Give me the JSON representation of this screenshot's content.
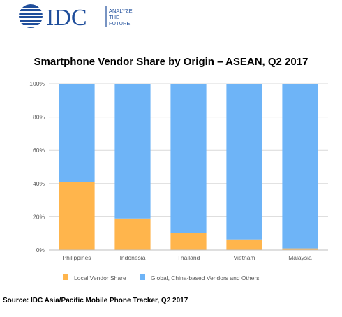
{
  "brand": {
    "logo_text": "IDC",
    "tagline_lines": [
      "ANALYZE",
      "THE",
      "FUTURE"
    ],
    "color": "#1f4e9b"
  },
  "chart_data": {
    "type": "bar",
    "stacked": true,
    "title": "Smartphone Vendor Share by Origin – ASEAN, Q2 2017",
    "categories": [
      "Philippines",
      "Indonesia",
      "Thailand",
      "Vietnam",
      "Malaysia"
    ],
    "series": [
      {
        "name": "Local Vendor Share",
        "color": "#ffb54c",
        "values": [
          41,
          19,
          10.5,
          6,
          1
        ]
      },
      {
        "name": "Global, China-based Vendors and Others",
        "color": "#6eb4f7",
        "values": [
          59,
          81,
          89.5,
          94,
          99
        ]
      }
    ],
    "yticks": [
      "0%",
      "20%",
      "40%",
      "60%",
      "80%",
      "100%"
    ],
    "ylim": [
      0,
      100
    ],
    "grid": true,
    "legend_position": "bottom"
  },
  "source": "Source: IDC Asia/Pacific Mobile Phone Tracker, Q2 2017"
}
